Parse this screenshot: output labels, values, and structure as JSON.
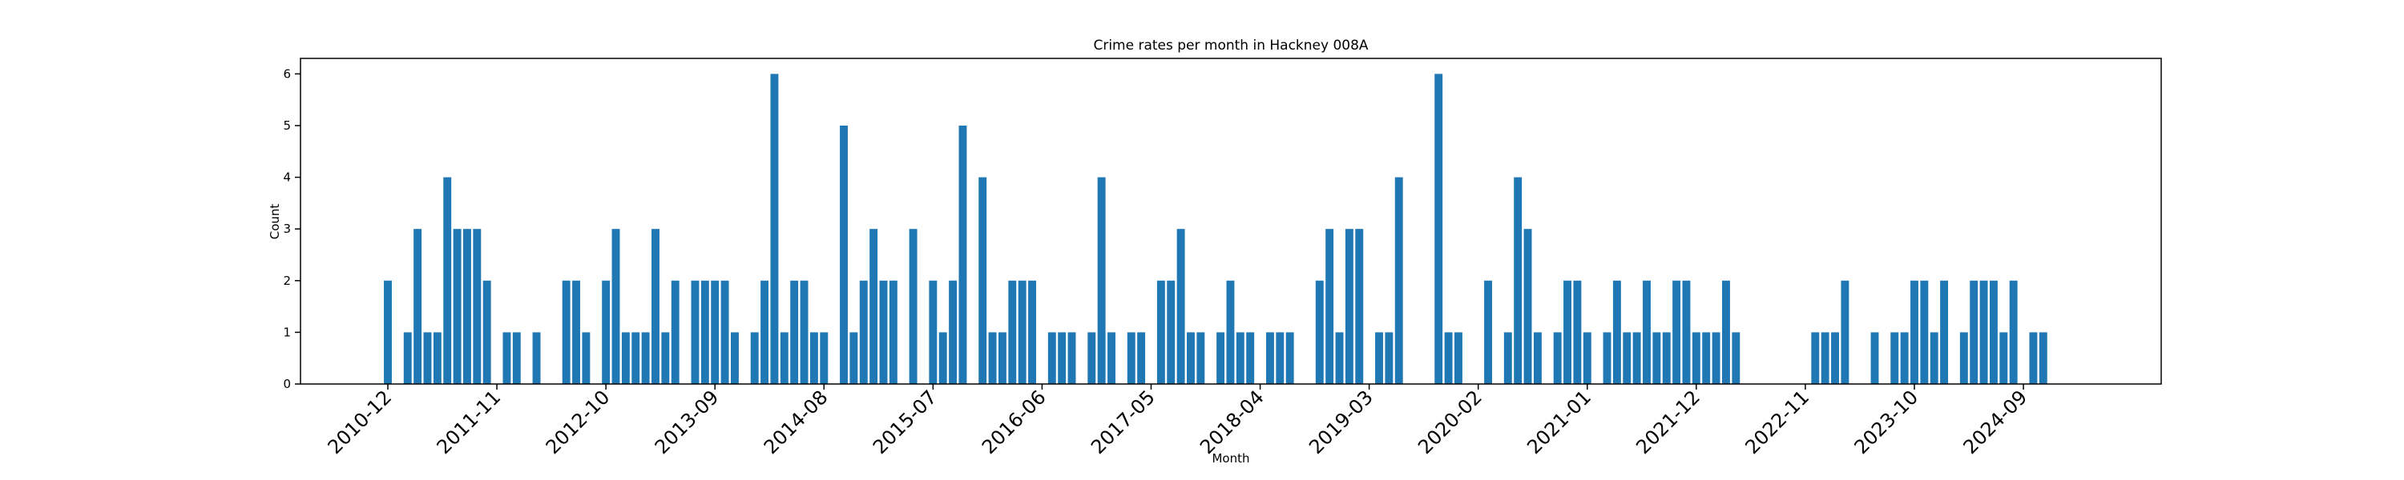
{
  "chart_data": {
    "type": "bar",
    "title": "Crime rates per month in Hackney 008A",
    "x_label": "Month",
    "y_label": "Count",
    "color": "#1f77b4",
    "ylim": [
      0,
      6.3
    ],
    "yticks": [
      0,
      1,
      2,
      3,
      4,
      5,
      6
    ],
    "categories": [
      "2010-12",
      null,
      null,
      null,
      null,
      null,
      null,
      null,
      null,
      null,
      null,
      "2011-11",
      null,
      null,
      null,
      null,
      null,
      null,
      null,
      null,
      null,
      null,
      "2012-10",
      null,
      null,
      null,
      null,
      null,
      null,
      null,
      null,
      null,
      null,
      "2013-09",
      null,
      null,
      null,
      null,
      null,
      null,
      null,
      null,
      null,
      null,
      "2014-08",
      null,
      null,
      null,
      null,
      null,
      null,
      null,
      null,
      null,
      null,
      "2015-07",
      null,
      null,
      null,
      null,
      null,
      null,
      null,
      null,
      null,
      null,
      "2016-06",
      null,
      null,
      null,
      null,
      null,
      null,
      null,
      null,
      null,
      null,
      "2017-05",
      null,
      null,
      null,
      null,
      null,
      null,
      null,
      null,
      null,
      null,
      "2018-04",
      null,
      null,
      null,
      null,
      null,
      null,
      null,
      null,
      null,
      null,
      "2019-03",
      null,
      null,
      null,
      null,
      null,
      null,
      null,
      null,
      null,
      null,
      "2020-02",
      null,
      null,
      null,
      null,
      null,
      null,
      null,
      null,
      null,
      null,
      "2021-01",
      null,
      null,
      null,
      null,
      null,
      null,
      null,
      null,
      null,
      null,
      "2021-12",
      null,
      null,
      null,
      null,
      null,
      null,
      null,
      null,
      null,
      null,
      "2022-11",
      null,
      null,
      null,
      null,
      null,
      null,
      null,
      null,
      null,
      null,
      "2023-10",
      null,
      null,
      null,
      null,
      null,
      null,
      null,
      null,
      null,
      null,
      "2024-09",
      null,
      null
    ],
    "values": [
      2,
      null,
      1,
      3,
      1,
      1,
      4,
      3,
      3,
      3,
      2,
      null,
      1,
      1,
      null,
      1,
      null,
      null,
      2,
      2,
      1,
      null,
      2,
      3,
      1,
      1,
      1,
      3,
      1,
      2,
      null,
      2,
      2,
      2,
      2,
      1,
      null,
      1,
      2,
      6,
      1,
      2,
      2,
      1,
      1,
      null,
      5,
      1,
      2,
      3,
      2,
      2,
      null,
      3,
      null,
      2,
      1,
      2,
      5,
      null,
      4,
      1,
      1,
      2,
      2,
      2,
      null,
      1,
      1,
      1,
      null,
      1,
      4,
      1,
      null,
      1,
      1,
      null,
      2,
      2,
      3,
      1,
      1,
      null,
      1,
      2,
      1,
      1,
      null,
      1,
      1,
      1,
      null,
      null,
      2,
      3,
      1,
      3,
      3,
      null,
      1,
      1,
      4,
      null,
      null,
      null,
      6,
      1,
      1,
      null,
      null,
      2,
      null,
      1,
      4,
      3,
      1,
      null,
      1,
      2,
      2,
      1,
      null,
      1,
      2,
      1,
      1,
      2,
      1,
      1,
      2,
      2,
      1,
      1,
      1,
      2,
      1,
      null,
      null,
      null,
      null,
      null,
      null,
      null,
      1,
      1,
      1,
      2,
      null,
      null,
      1,
      null,
      1,
      1,
      2,
      2,
      1,
      2,
      null,
      1,
      2,
      2,
      2,
      1,
      2,
      null,
      1,
      1
    ]
  }
}
